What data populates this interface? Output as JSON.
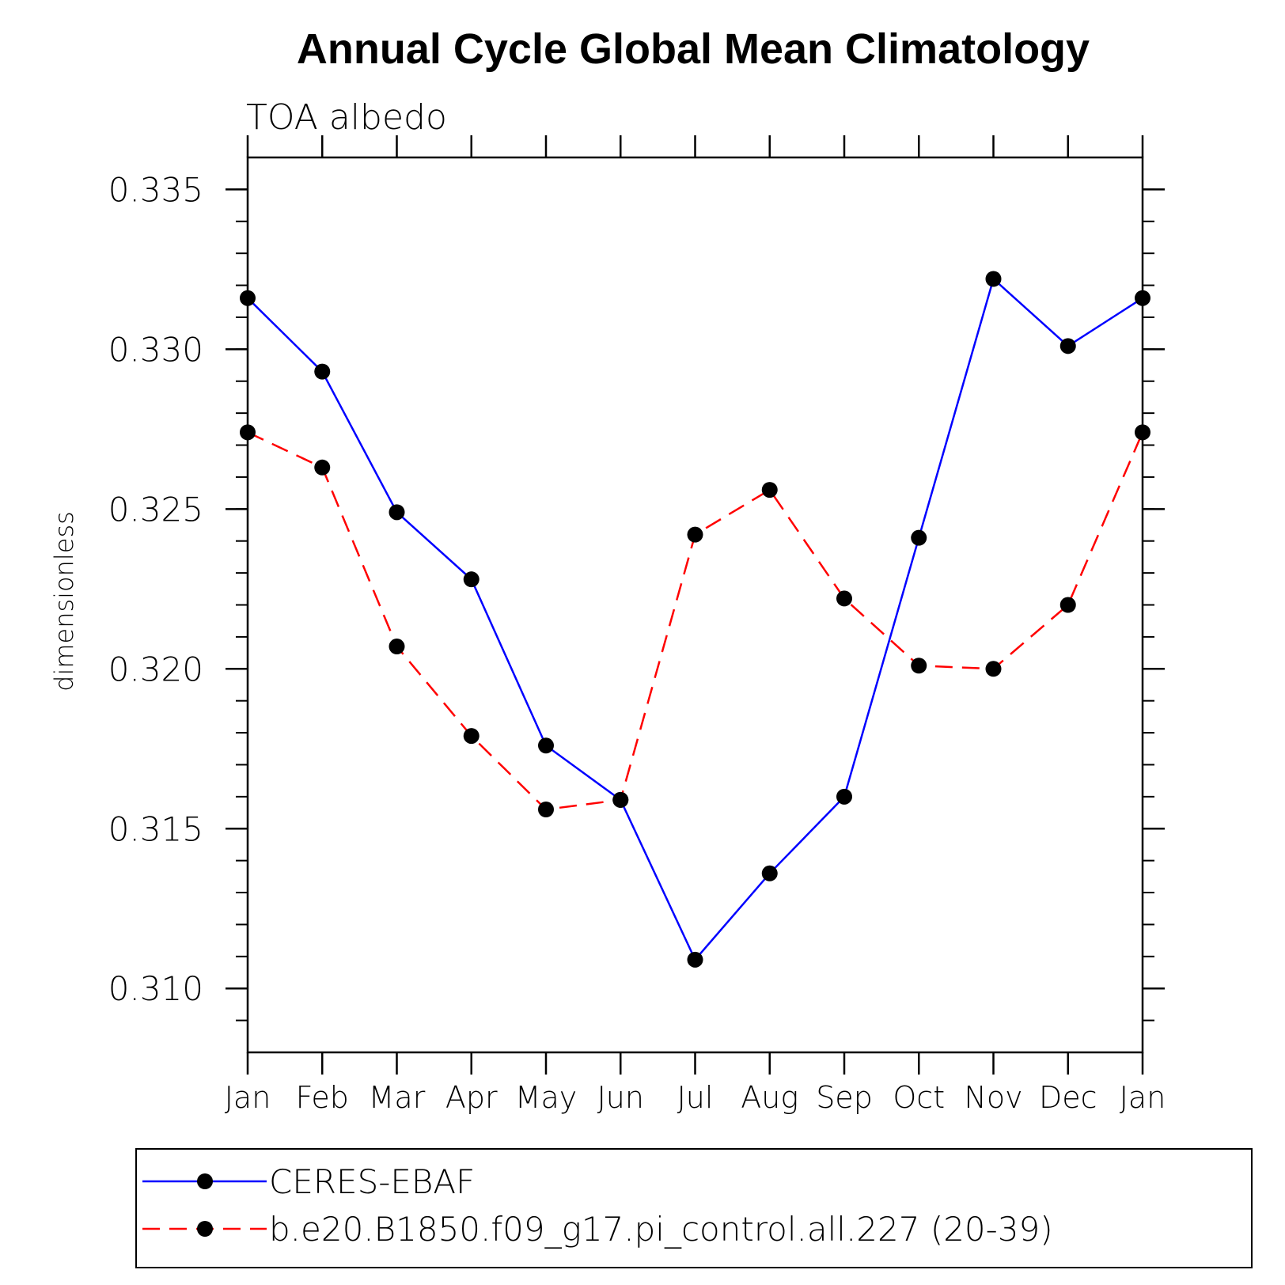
{
  "chart_data": {
    "type": "line",
    "title": "Annual Cycle Global Mean Climatology",
    "subtitle": "TOA albedo",
    "xlabel": "",
    "ylabel": "dimensionless",
    "categories": [
      "Jan",
      "Feb",
      "Mar",
      "Apr",
      "May",
      "Jun",
      "Jul",
      "Aug",
      "Sep",
      "Oct",
      "Nov",
      "Dec",
      "Jan"
    ],
    "ylim": [
      0.308,
      0.336
    ],
    "yticks": [
      0.31,
      0.315,
      0.32,
      0.325,
      0.33,
      0.335
    ],
    "ytick_labels": [
      "0.310",
      "0.315",
      "0.320",
      "0.325",
      "0.330",
      "0.335"
    ],
    "yminor_step": 0.001,
    "grid": false,
    "legend_position": "bottom",
    "series": [
      {
        "name": "CERES-EBAF",
        "color": "#0000ff",
        "dash": "solid",
        "marker_color": "#000000",
        "values": [
          0.3316,
          0.3293,
          0.3249,
          0.3228,
          0.3176,
          0.3159,
          0.3109,
          0.3136,
          0.316,
          0.3241,
          0.3322,
          0.3301,
          0.3316
        ]
      },
      {
        "name": "b.e20.B1850.f09_g17.pi_control.all.227 (20-39)",
        "color": "#ff0000",
        "dash": "dashed",
        "marker_color": "#000000",
        "values": [
          0.3274,
          0.3263,
          0.3207,
          0.3179,
          0.3156,
          0.3159,
          0.3242,
          0.3256,
          0.3222,
          0.3201,
          0.32,
          0.322,
          0.3274
        ]
      }
    ]
  }
}
